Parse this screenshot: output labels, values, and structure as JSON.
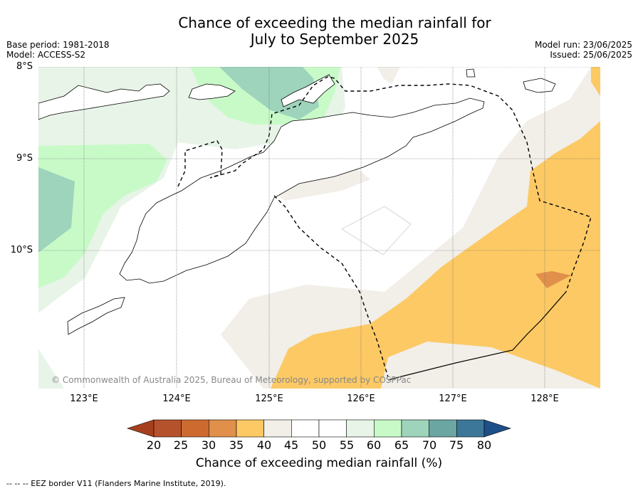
{
  "title_line1": "Chance of exceeding the median rainfall for",
  "title_line2": "July to September 2025",
  "base_period": "Base period: 1981-2018",
  "model": "Model: ACCESS-S2",
  "model_run": "Model run: 23/06/2025",
  "issued": "Issued: 25/06/2025",
  "latitude_labels": [
    "8°S",
    "9°S",
    "10°S"
  ],
  "longitude_labels": [
    "123°E",
    "124°E",
    "125°E",
    "126°E",
    "127°E",
    "128°E"
  ],
  "copyright": "© Commonwealth of Australia 2025, Bureau of Meteorology, supported by COSPPac",
  "colorbar": {
    "ticks": [
      "20",
      "25",
      "30",
      "35",
      "40",
      "45",
      "50",
      "55",
      "60",
      "65",
      "70",
      "75",
      "80"
    ],
    "colors": [
      "#a63f1e",
      "#b5522b",
      "#cc6a30",
      "#e0904a",
      "#fcc964",
      "#f2eee8",
      "#ffffff",
      "#ffffff",
      "#e8f4e8",
      "#c8fac8",
      "#9ed3bc",
      "#6ba6a3",
      "#3c7799",
      "#1e4f88"
    ],
    "label": "Chance of exceeding median rainfall (%)"
  },
  "footnote": "--  --  -- EEZ border V11 (Flanders Marine Institute, 2019).",
  "map_colors": {
    "below_35_40": "#fcc964",
    "below_30_35": "#e0904a",
    "near_40_45": "#f2eee8",
    "above_55_60": "#e8f4e8",
    "above_60_65": "#c8fac8",
    "above_65_70": "#9ed3bc"
  }
}
